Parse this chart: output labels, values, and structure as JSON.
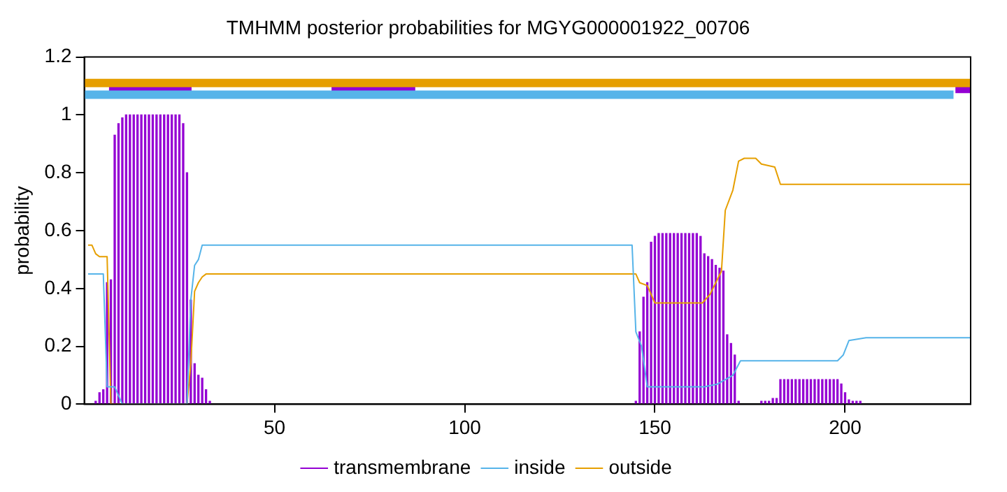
{
  "chart_data": {
    "type": "line",
    "title": "TMHMM posterior probabilities for MGYG000001922_00706",
    "ylabel": "probability",
    "xlim": [
      0,
      233
    ],
    "xticks": [
      50,
      100,
      150,
      200
    ],
    "ylim": [
      0,
      1.2
    ],
    "yticks": [
      0,
      0.2,
      0.4,
      0.6,
      0.8,
      1,
      1.2
    ],
    "grid": false,
    "legend": "bottom",
    "marker": "none",
    "series": [
      {
        "name": "transmembrane",
        "type": "bar",
        "color": "#9400d3",
        "x": [
          3,
          4,
          5,
          6,
          7,
          8,
          9,
          10,
          11,
          12,
          13,
          14,
          15,
          16,
          17,
          18,
          19,
          20,
          21,
          22,
          23,
          24,
          25,
          26,
          27,
          28,
          29,
          30,
          31,
          32,
          33,
          145,
          146,
          147,
          148,
          149,
          150,
          151,
          152,
          153,
          154,
          155,
          156,
          157,
          158,
          159,
          160,
          161,
          162,
          163,
          164,
          165,
          166,
          167,
          168,
          169,
          170,
          171,
          172,
          178,
          179,
          180,
          181,
          182,
          183,
          184,
          185,
          186,
          187,
          188,
          189,
          190,
          191,
          192,
          193,
          194,
          195,
          196,
          197,
          198,
          199,
          200,
          201,
          202,
          203,
          204
        ],
        "values": [
          0.01,
          0.04,
          0.05,
          0.42,
          0.43,
          0.93,
          0.97,
          0.99,
          1,
          1,
          1,
          1,
          1,
          1,
          1,
          1,
          1,
          1,
          1,
          1,
          1,
          1,
          1,
          0.97,
          0.8,
          0.36,
          0.14,
          0.1,
          0.09,
          0.05,
          0.01,
          0.01,
          0.25,
          0.37,
          0.42,
          0.56,
          0.58,
          0.59,
          0.59,
          0.59,
          0.59,
          0.59,
          0.59,
          0.59,
          0.59,
          0.59,
          0.59,
          0.59,
          0.58,
          0.52,
          0.51,
          0.5,
          0.48,
          0.47,
          0.46,
          0.24,
          0.21,
          0.17,
          0.01,
          0.01,
          0.01,
          0.01,
          0.02,
          0.02,
          0.085,
          0.085,
          0.085,
          0.085,
          0.085,
          0.085,
          0.085,
          0.085,
          0.085,
          0.085,
          0.085,
          0.085,
          0.085,
          0.085,
          0.085,
          0.085,
          0.07,
          0.04,
          0.015,
          0.01,
          0.01,
          0.01
        ]
      },
      {
        "name": "inside",
        "color": "#56b4e9",
        "x": [
          1,
          5,
          6,
          8,
          10,
          27,
          28,
          29,
          30,
          31,
          144,
          145,
          146.5,
          148,
          163,
          166.5,
          170.5,
          172.5,
          198,
          199.5,
          201,
          205.5,
          233
        ],
        "values": [
          0.45,
          0.45,
          0.06,
          0.06,
          0,
          0,
          0.36,
          0.48,
          0.5,
          0.55,
          0.55,
          0.25,
          0.2,
          0.06,
          0.06,
          0.07,
          0.1,
          0.15,
          0.15,
          0.17,
          0.22,
          0.23,
          0.23
        ]
      },
      {
        "name": "outside",
        "color": "#e69f00",
        "x": [
          1,
          2,
          3,
          4,
          6,
          7,
          27,
          28,
          29,
          30,
          31,
          32,
          145,
          146,
          148,
          150,
          162.5,
          164.5,
          167.5,
          168.5,
          170.5,
          172,
          173.5,
          176.5,
          178,
          181.5,
          183,
          233
        ],
        "values": [
          0.55,
          0.55,
          0.52,
          0.51,
          0.51,
          0,
          0,
          0.14,
          0.39,
          0.42,
          0.44,
          0.45,
          0.45,
          0.42,
          0.41,
          0.35,
          0.35,
          0.38,
          0.46,
          0.67,
          0.74,
          0.84,
          0.85,
          0.85,
          0.83,
          0.82,
          0.76,
          0.76
        ]
      },
      {
        "color": "#e69f00",
        "x": [
          0,
          233
        ],
        "values": [
          1.11,
          1.11
        ]
      },
      {
        "color": "#56b4e9",
        "x": [
          0,
          228.5
        ],
        "values": [
          1.07,
          1.07
        ]
      },
      {
        "color": "#9400d3",
        "x": [
          6.5,
          28.2
        ],
        "values": [
          1.09,
          1.09
        ]
      },
      {
        "color": "#9400d3",
        "x": [
          65,
          87
        ],
        "values": [
          1.09,
          1.09
        ]
      },
      {
        "color": "#9400d3",
        "x": [
          229,
          233
        ],
        "values": [
          1.09,
          1.09
        ]
      }
    ]
  }
}
